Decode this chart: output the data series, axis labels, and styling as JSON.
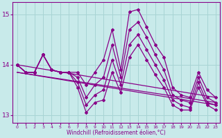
{
  "title": "",
  "xlabel": "Windchill (Refroidissement éolien,°C)",
  "ylabel": "",
  "bg_color": "#c8eaea",
  "line_color": "#880088",
  "grid_color": "#a8d4d4",
  "ylim": [
    12.85,
    15.25
  ],
  "xlim": [
    -0.5,
    23.5
  ],
  "yticks": [
    13,
    14,
    15
  ],
  "xtick_labels": [
    "0",
    "1",
    "2",
    "3",
    "4",
    "5",
    "6",
    "7",
    "8",
    "9",
    "10",
    "11",
    "12",
    "13",
    "14",
    "15",
    "16",
    "17",
    "18",
    "19",
    "20",
    "21",
    "22",
    "23"
  ],
  "series": [
    [
      14.0,
      13.85,
      13.85,
      14.2,
      13.9,
      13.85,
      13.85,
      13.85,
      13.6,
      13.85,
      14.1,
      14.7,
      13.9,
      15.05,
      15.1,
      14.75,
      14.4,
      14.15,
      13.55,
      13.4,
      13.35,
      13.85,
      13.5,
      13.35
    ],
    [
      14.0,
      13.85,
      13.85,
      14.2,
      13.9,
      13.85,
      13.85,
      13.75,
      13.35,
      13.6,
      13.75,
      14.4,
      13.75,
      14.7,
      14.85,
      14.55,
      14.2,
      13.9,
      13.4,
      13.3,
      13.25,
      13.75,
      13.35,
      13.25
    ],
    [
      14.0,
      13.85,
      13.85,
      14.2,
      13.9,
      13.85,
      13.85,
      13.65,
      13.2,
      13.4,
      13.5,
      14.1,
      13.6,
      14.4,
      14.6,
      14.3,
      14.0,
      13.7,
      13.3,
      13.2,
      13.15,
      13.65,
      13.25,
      13.2
    ],
    [
      14.0,
      13.85,
      13.85,
      14.2,
      13.9,
      13.85,
      13.85,
      13.55,
      13.05,
      13.25,
      13.3,
      13.85,
      13.45,
      14.15,
      14.4,
      14.1,
      13.8,
      13.55,
      13.2,
      13.1,
      13.1,
      13.55,
      13.2,
      13.1
    ]
  ],
  "regression_lines": [
    {
      "x0": 0,
      "y0": 14.0,
      "x1": 23,
      "y1": 13.35
    },
    {
      "x0": 0,
      "y0": 13.85,
      "x1": 23,
      "y1": 13.25
    },
    {
      "x0": 0,
      "y0": 13.85,
      "x1": 23,
      "y1": 13.2
    }
  ]
}
